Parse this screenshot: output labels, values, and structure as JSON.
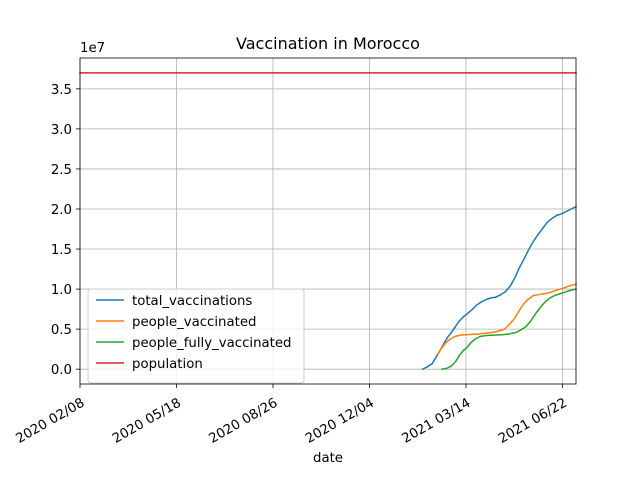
{
  "chart_data": {
    "type": "line",
    "title": "Vaccination in Morocco",
    "xlabel": "date",
    "ylabel": "",
    "y_offset_label": "1e7",
    "y_multiplier": 10000000,
    "grid": true,
    "legend_position": "lower-left",
    "x_tick_labels": [
      "2020 02/08",
      "2020 05/18",
      "2020 08/26",
      "2020 12/04",
      "2021 03/14",
      "2021 06/22"
    ],
    "x_ticks": [
      "2020-02-08",
      "2020-05-18",
      "2020-08-26",
      "2020-12-04",
      "2021-03-14",
      "2021-06-22"
    ],
    "y_tick_labels": [
      "0.0",
      "0.5",
      "1.0",
      "1.5",
      "2.0",
      "2.5",
      "3.0",
      "3.5"
    ],
    "y_ticks": [
      0,
      5000000,
      10000000,
      15000000,
      20000000,
      25000000,
      30000000,
      35000000
    ],
    "xlim": [
      "2020-02-08",
      "2021-07-06"
    ],
    "ylim": [
      -1850000,
      38850000
    ],
    "series": [
      {
        "name": "total_vaccinations",
        "color": "#1f77b4",
        "points": [
          [
            "2021-01-28",
            0
          ],
          [
            "2021-02-02",
            300000
          ],
          [
            "2021-02-07",
            700000
          ],
          [
            "2021-02-12",
            1700000
          ],
          [
            "2021-02-15",
            2300000
          ],
          [
            "2021-02-19",
            3200000
          ],
          [
            "2021-02-23",
            4000000
          ],
          [
            "2021-02-27",
            4600000
          ],
          [
            "2021-03-03",
            5300000
          ],
          [
            "2021-03-07",
            6000000
          ],
          [
            "2021-03-11",
            6500000
          ],
          [
            "2021-03-15",
            6900000
          ],
          [
            "2021-03-20",
            7400000
          ],
          [
            "2021-03-25",
            8000000
          ],
          [
            "2021-03-30",
            8400000
          ],
          [
            "2021-04-04",
            8700000
          ],
          [
            "2021-04-09",
            8900000
          ],
          [
            "2021-04-14",
            9000000
          ],
          [
            "2021-04-19",
            9300000
          ],
          [
            "2021-04-24",
            9700000
          ],
          [
            "2021-04-29",
            10400000
          ],
          [
            "2021-05-04",
            11500000
          ],
          [
            "2021-05-08",
            12600000
          ],
          [
            "2021-05-12",
            13500000
          ],
          [
            "2021-05-17",
            14700000
          ],
          [
            "2021-05-22",
            15800000
          ],
          [
            "2021-05-27",
            16700000
          ],
          [
            "2021-06-01",
            17500000
          ],
          [
            "2021-06-06",
            18300000
          ],
          [
            "2021-06-11",
            18800000
          ],
          [
            "2021-06-16",
            19200000
          ],
          [
            "2021-06-21",
            19400000
          ],
          [
            "2021-06-26",
            19700000
          ],
          [
            "2021-07-01",
            20000000
          ],
          [
            "2021-07-06",
            20300000
          ]
        ]
      },
      {
        "name": "people_vaccinated",
        "color": "#ff7f0e",
        "points": [
          [
            "2021-02-12",
            1800000
          ],
          [
            "2021-02-16",
            2500000
          ],
          [
            "2021-02-21",
            3300000
          ],
          [
            "2021-02-26",
            3800000
          ],
          [
            "2021-03-03",
            4100000
          ],
          [
            "2021-03-08",
            4250000
          ],
          [
            "2021-03-13",
            4300000
          ],
          [
            "2021-03-20",
            4350000
          ],
          [
            "2021-03-28",
            4400000
          ],
          [
            "2021-04-04",
            4500000
          ],
          [
            "2021-04-11",
            4600000
          ],
          [
            "2021-04-18",
            4800000
          ],
          [
            "2021-04-23",
            5000000
          ],
          [
            "2021-04-28",
            5600000
          ],
          [
            "2021-05-03",
            6300000
          ],
          [
            "2021-05-08",
            7300000
          ],
          [
            "2021-05-13",
            8200000
          ],
          [
            "2021-05-18",
            8800000
          ],
          [
            "2021-05-23",
            9200000
          ],
          [
            "2021-05-28",
            9300000
          ],
          [
            "2021-06-02",
            9400000
          ],
          [
            "2021-06-07",
            9500000
          ],
          [
            "2021-06-12",
            9700000
          ],
          [
            "2021-06-17",
            9900000
          ],
          [
            "2021-06-22",
            10100000
          ],
          [
            "2021-06-27",
            10300000
          ],
          [
            "2021-07-02",
            10500000
          ],
          [
            "2021-07-06",
            10600000
          ]
        ]
      },
      {
        "name": "people_fully_vaccinated",
        "color": "#2ca02c",
        "points": [
          [
            "2021-02-17",
            0
          ],
          [
            "2021-02-22",
            100000
          ],
          [
            "2021-02-27",
            400000
          ],
          [
            "2021-03-03",
            900000
          ],
          [
            "2021-03-07",
            1700000
          ],
          [
            "2021-03-11",
            2300000
          ],
          [
            "2021-03-15",
            2700000
          ],
          [
            "2021-03-19",
            3300000
          ],
          [
            "2021-03-24",
            3800000
          ],
          [
            "2021-03-29",
            4100000
          ],
          [
            "2021-04-04",
            4200000
          ],
          [
            "2021-04-12",
            4250000
          ],
          [
            "2021-04-20",
            4300000
          ],
          [
            "2021-04-28",
            4400000
          ],
          [
            "2021-05-05",
            4600000
          ],
          [
            "2021-05-10",
            4900000
          ],
          [
            "2021-05-15",
            5300000
          ],
          [
            "2021-05-20",
            6000000
          ],
          [
            "2021-05-25",
            6900000
          ],
          [
            "2021-05-30",
            7700000
          ],
          [
            "2021-06-04",
            8400000
          ],
          [
            "2021-06-09",
            8900000
          ],
          [
            "2021-06-14",
            9200000
          ],
          [
            "2021-06-19",
            9400000
          ],
          [
            "2021-06-24",
            9600000
          ],
          [
            "2021-06-29",
            9800000
          ],
          [
            "2021-07-06",
            10000000
          ]
        ]
      },
      {
        "name": "population",
        "color": "#d62728",
        "points": [
          [
            "2020-02-08",
            37000000
          ],
          [
            "2021-07-06",
            37000000
          ]
        ]
      }
    ]
  }
}
